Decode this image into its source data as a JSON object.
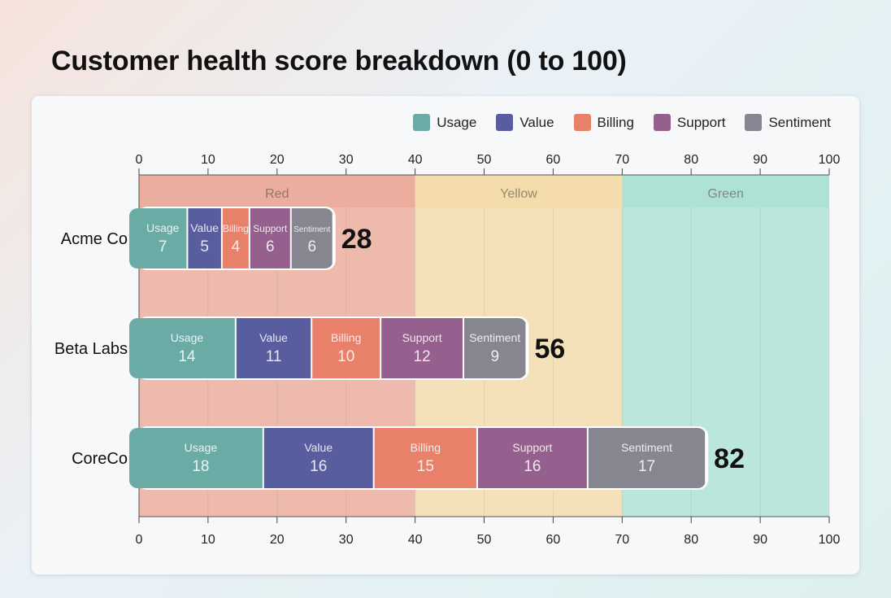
{
  "chart_data": {
    "type": "bar",
    "orientation": "horizontal",
    "stacked": true,
    "title": "Customer health score breakdown (0 to 100)",
    "categories": [
      "Acme Co",
      "Beta Labs",
      "CoreCo"
    ],
    "series": [
      {
        "name": "Usage",
        "values": [
          7,
          14,
          18
        ],
        "color": "#6aaca5"
      },
      {
        "name": "Value",
        "values": [
          5,
          11,
          16
        ],
        "color": "#575d9e"
      },
      {
        "name": "Billing",
        "values": [
          4,
          10,
          15
        ],
        "color": "#e8806a"
      },
      {
        "name": "Support",
        "values": [
          6,
          12,
          16
        ],
        "color": "#95608d"
      },
      {
        "name": "Sentiment",
        "values": [
          6,
          9,
          17
        ],
        "color": "#858690"
      }
    ],
    "totals": [
      28,
      56,
      82
    ],
    "xlim": [
      0,
      100
    ],
    "xticks": [
      0,
      10,
      20,
      30,
      40,
      50,
      60,
      70,
      80,
      90,
      100
    ],
    "bands": [
      {
        "label": "Red",
        "from": 0,
        "to": 40,
        "color": "#eaa593"
      },
      {
        "label": "Yellow",
        "from": 40,
        "to": 70,
        "color": "#f3d9a3"
      },
      {
        "label": "Green",
        "from": 70,
        "to": 100,
        "color": "#a6e0d2"
      }
    ],
    "grid": true,
    "legend": "top-right"
  }
}
